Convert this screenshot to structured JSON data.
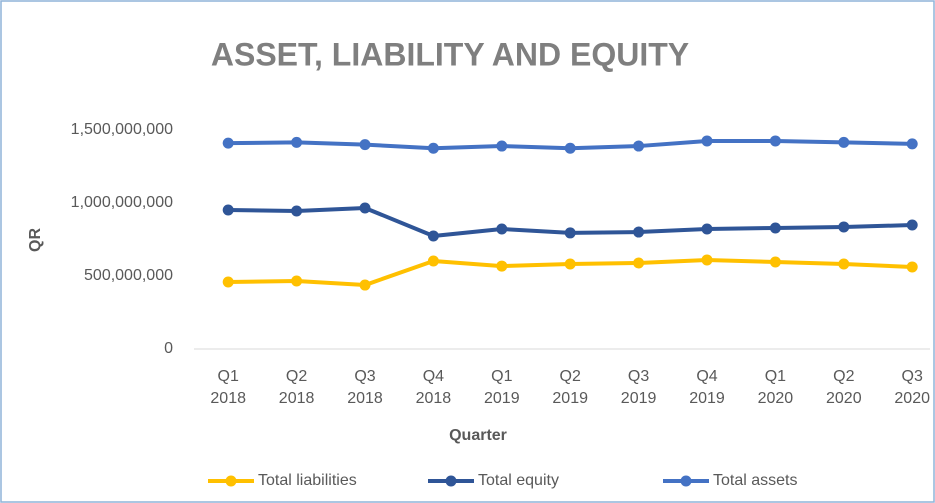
{
  "chart_data": {
    "type": "line",
    "title": "ASSET, LIABILITY AND EQUITY",
    "x_label": "Quarter",
    "y_label": "QR",
    "categories": [
      [
        "Q1",
        "2018"
      ],
      [
        "Q2",
        "2018"
      ],
      [
        "Q3",
        "2018"
      ],
      [
        "Q4",
        "2018"
      ],
      [
        "Q1",
        "2019"
      ],
      [
        "Q2",
        "2019"
      ],
      [
        "Q3",
        "2019"
      ],
      [
        "Q4",
        "2019"
      ],
      [
        "Q1",
        "2020"
      ],
      [
        "Q2",
        "2020"
      ],
      [
        "Q3",
        "2020"
      ]
    ],
    "series": [
      {
        "name": "Total liabilities",
        "color": "#ffc000",
        "values": [
          459000000,
          466000000,
          438000000,
          603000000,
          568000000,
          582000000,
          589000000,
          610000000,
          596000000,
          582000000,
          562000000
        ]
      },
      {
        "name": "Total equity",
        "color": "#2f5597",
        "values": [
          952000000,
          945000000,
          966000000,
          774000000,
          822000000,
          795000000,
          801000000,
          822000000,
          829000000,
          836000000,
          849000000
        ]
      },
      {
        "name": "Total assets",
        "color": "#4472c4",
        "values": [
          1410000000,
          1415000000,
          1400000000,
          1375000000,
          1390000000,
          1375000000,
          1390000000,
          1425000000,
          1425000000,
          1415000000,
          1405000000
        ]
      }
    ],
    "ylim": [
      0,
      1500000000
    ],
    "yticks": [
      0,
      {
        "value": 500000000,
        "label": "500,000,000"
      },
      {
        "value": 1000000000,
        "label": "1,000,000,000"
      },
      {
        "value": 1500000000,
        "label": "1,500,000,000"
      }
    ],
    "grid": false,
    "legend": "bottom"
  }
}
